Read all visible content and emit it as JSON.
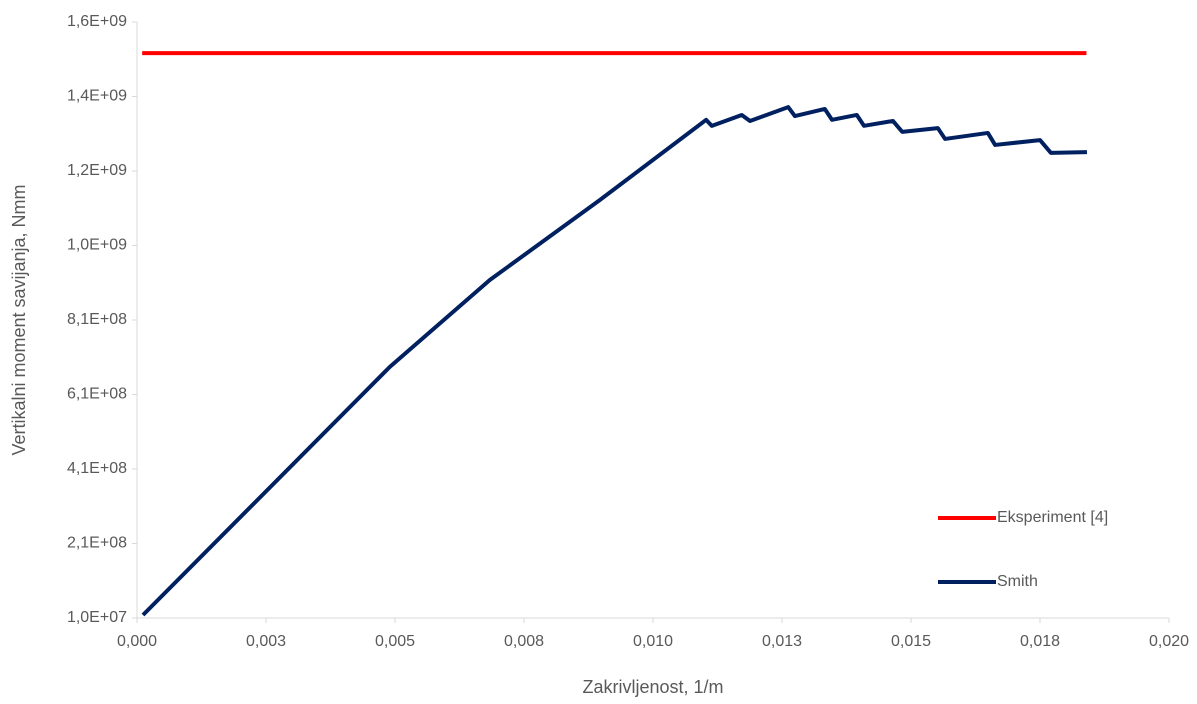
{
  "chart_data": {
    "type": "line",
    "x_label": "Zakrivljenost, 1/m",
    "y_label": "Vertikalni moment savijanja, Nmm",
    "xlim": [
      0,
      0.02
    ],
    "xticks": [
      {
        "value": 0,
        "label": "0,000"
      },
      {
        "value": 0.0025,
        "label": "0,003"
      },
      {
        "value": 0.005,
        "label": "0,005"
      },
      {
        "value": 0.0075,
        "label": "0,008"
      },
      {
        "value": 0.01,
        "label": "0,010"
      },
      {
        "value": 0.0125,
        "label": "0,013"
      },
      {
        "value": 0.015,
        "label": "0,015"
      },
      {
        "value": 0.0175,
        "label": "0,018"
      },
      {
        "value": 0.02,
        "label": "0,020"
      }
    ],
    "ylim": [
      10000000,
      1600000000
    ],
    "yticks": [
      {
        "value": 10000000,
        "label": "1,0E+07"
      },
      {
        "value": 208750000,
        "label": "2,1E+08"
      },
      {
        "value": 407500000,
        "label": "4,1E+08"
      },
      {
        "value": 606250000,
        "label": "6,1E+08"
      },
      {
        "value": 805000000,
        "label": "8,1E+08"
      },
      {
        "value": 1003750000,
        "label": "1,0E+09"
      },
      {
        "value": 1202500000,
        "label": "1,2E+09"
      },
      {
        "value": 1401250000,
        "label": "1,4E+09"
      },
      {
        "value": 1600000000,
        "label": "1,6E+09"
      }
    ],
    "grid": false,
    "legend": "right",
    "series": [
      {
        "name": "Eksperiment [4]",
        "color": "#ff0000",
        "x": [
          0.0001,
          0.0184
        ],
        "values": [
          1517000000,
          1517000000
        ]
      },
      {
        "name": "Smith",
        "color": "#002060",
        "x": [
          0.000116,
          0.0049,
          0.00684,
          0.00897,
          0.01103,
          0.01114,
          0.01172,
          0.01188,
          0.01262,
          0.01275,
          0.01333,
          0.01347,
          0.01395,
          0.01409,
          0.01465,
          0.01483,
          0.01552,
          0.01566,
          0.01649,
          0.01663,
          0.0175,
          0.01771,
          0.01841
        ],
        "values": [
          18000000,
          680000000,
          912000000,
          1125000000,
          1339000000,
          1323000000,
          1352000000,
          1336000000,
          1373000000,
          1349000000,
          1368000000,
          1339000000,
          1352000000,
          1323000000,
          1336000000,
          1307000000,
          1317000000,
          1288000000,
          1304000000,
          1272000000,
          1285000000,
          1251000000,
          1253000000
        ]
      }
    ]
  }
}
